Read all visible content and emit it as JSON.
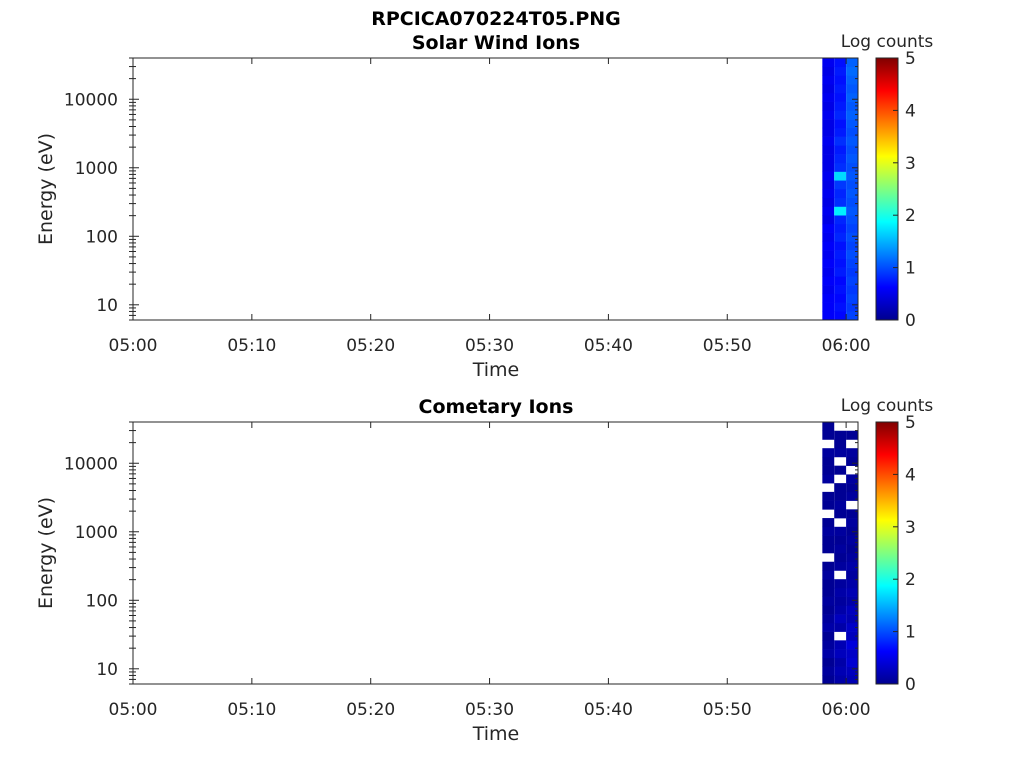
{
  "figure_title": "RPCICA070224T05.PNG",
  "chart_data": [
    {
      "type": "heatmap",
      "title": "Solar Wind Ions",
      "xlabel": "Time",
      "ylabel": "Energy (eV)",
      "x_ticks": [
        "05:00",
        "05:10",
        "05:20",
        "05:30",
        "05:40",
        "05:50",
        "06:00"
      ],
      "x_range": [
        "05:00",
        "06:01"
      ],
      "y_scale": "log",
      "y_ticks": [
        "10",
        "100",
        "1000",
        "10000"
      ],
      "y_range": [
        6,
        40000
      ],
      "colorbar": {
        "label": "Log counts",
        "ticks": [
          "0",
          "1",
          "2",
          "3",
          "4",
          "5"
        ],
        "range": [
          0,
          5
        ],
        "colormap": "jet"
      },
      "data_columns": [
        {
          "time_start": "05:58",
          "time_end": "05:59",
          "log_counts": [
            0.6,
            0.6,
            0.6,
            0.55,
            0.6,
            0.55,
            0.6,
            0.55,
            0.6,
            0.55,
            0.6,
            0.5,
            0.55,
            0.5,
            0.55,
            0.5,
            0.55,
            0.5,
            0.5,
            0.5,
            0.55,
            0.5,
            0.5,
            0.55,
            0.5,
            0.55,
            0.5,
            0.55,
            0.5,
            0.55
          ]
        },
        {
          "time_start": "05:59",
          "time_end": "06:00",
          "log_counts": [
            0.65,
            0.7,
            0.65,
            0.7,
            0.65,
            0.75,
            0.7,
            0.75,
            0.7,
            0.8,
            0.75,
            0.8,
            1.8,
            0.85,
            0.8,
            0.9,
            1.7,
            0.85,
            0.8,
            0.75,
            0.85,
            0.75,
            0.7,
            0.8,
            0.75,
            0.7,
            0.75,
            0.7,
            0.75,
            0.7
          ]
        },
        {
          "time_start": "06:00",
          "time_end": "06:01",
          "log_counts": [
            0.95,
            0.9,
            0.95,
            0.9,
            0.95,
            0.9,
            0.95,
            1.0,
            0.95,
            1.0,
            0.95,
            1.0,
            1.05,
            1.0,
            1.05,
            1.0,
            1.05,
            1.0,
            1.05,
            1.0,
            1.05,
            1.0,
            1.05,
            1.1,
            1.05,
            1.1,
            1.05,
            1.1,
            1.15,
            1.1
          ]
        }
      ]
    },
    {
      "type": "heatmap",
      "title": "Cometary Ions",
      "xlabel": "Time",
      "ylabel": "Energy (eV)",
      "x_ticks": [
        "05:00",
        "05:10",
        "05:20",
        "05:30",
        "05:40",
        "05:50",
        "06:00"
      ],
      "x_range": [
        "05:00",
        "06:01"
      ],
      "y_scale": "log",
      "y_ticks": [
        "10",
        "100",
        "1000",
        "10000"
      ],
      "y_range": [
        6,
        40000
      ],
      "colorbar": {
        "label": "Log counts",
        "ticks": [
          "0",
          "1",
          "2",
          "3",
          "4",
          "5"
        ],
        "range": [
          0,
          5
        ],
        "colormap": "jet"
      },
      "data_columns": [
        {
          "time_start": "05:58",
          "time_end": "05:59",
          "log_counts": [
            0.1,
            0.15,
            0.1,
            0.2,
            0.15,
            0.1,
            0.2,
            0.15,
            0.1,
            0.15,
            0.1,
            0.1,
            0.15,
            0.1,
            null,
            0.1,
            0.1,
            0.15,
            0.1,
            null,
            0.1,
            0.1,
            null,
            0.15,
            0.1,
            0.1,
            0.15,
            null,
            0.1,
            0.1
          ]
        },
        {
          "time_start": "05:59",
          "time_end": "06:00",
          "log_counts": [
            0.2,
            0.25,
            0.2,
            0.3,
            0.25,
            null,
            0.2,
            0.3,
            0.2,
            0.15,
            0.2,
            0.15,
            null,
            0.15,
            0.1,
            0.15,
            0.1,
            0.15,
            null,
            0.1,
            0.15,
            0.1,
            0.1,
            null,
            0.1,
            null,
            0.15,
            0.1,
            0.1,
            null
          ]
        },
        {
          "time_start": "06:00",
          "time_end": "06:01",
          "log_counts": [
            0.25,
            0.3,
            0.4,
            0.35,
            0.45,
            0.3,
            0.35,
            0.25,
            0.3,
            0.2,
            0.25,
            0.2,
            0.15,
            0.2,
            0.15,
            0.1,
            0.15,
            0.1,
            0.15,
            0.1,
            null,
            0.15,
            0.1,
            0.15,
            null,
            0.1,
            0.15,
            null,
            0.1,
            null
          ]
        }
      ]
    }
  ]
}
